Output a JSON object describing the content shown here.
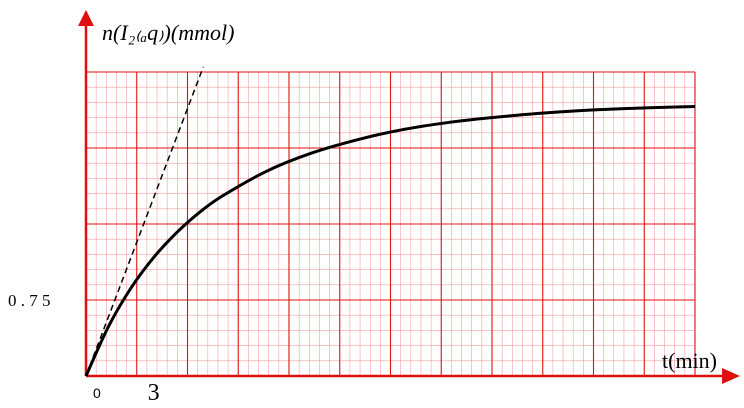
{
  "chart_data": {
    "type": "line",
    "y_label": "n(I₂₍ₐq₎)(mmol)",
    "x_label": "t(min)",
    "origin_label": "0",
    "x_tick_labels": [
      {
        "x": 3,
        "label": "3"
      }
    ],
    "y_tick_labels": [
      {
        "y": 0.75,
        "label": "0 . 7 5"
      }
    ],
    "xlim": [
      0,
      27
    ],
    "ylim": [
      0,
      3
    ],
    "grid": true,
    "series": [
      {
        "style": "solid",
        "color": "#000000",
        "x": [
          0,
          1,
          2,
          3,
          4,
          5,
          6,
          8,
          10,
          12,
          14,
          16,
          18,
          20,
          22,
          24,
          27
        ],
        "y": [
          0,
          0.49,
          0.87,
          1.17,
          1.41,
          1.61,
          1.77,
          2.02,
          2.2,
          2.33,
          2.43,
          2.5,
          2.55,
          2.59,
          2.62,
          2.64,
          2.66
        ]
      },
      {
        "style": "dashed",
        "color": "#000000",
        "role": "tangent at origin",
        "x": [
          0,
          5.2
        ],
        "y": [
          0,
          3.05
        ]
      }
    ],
    "colors": {
      "grid_major": "#e01010",
      "grid_minor": "#f0a0a0",
      "axis": "#e01010",
      "curve": "#000000"
    }
  }
}
